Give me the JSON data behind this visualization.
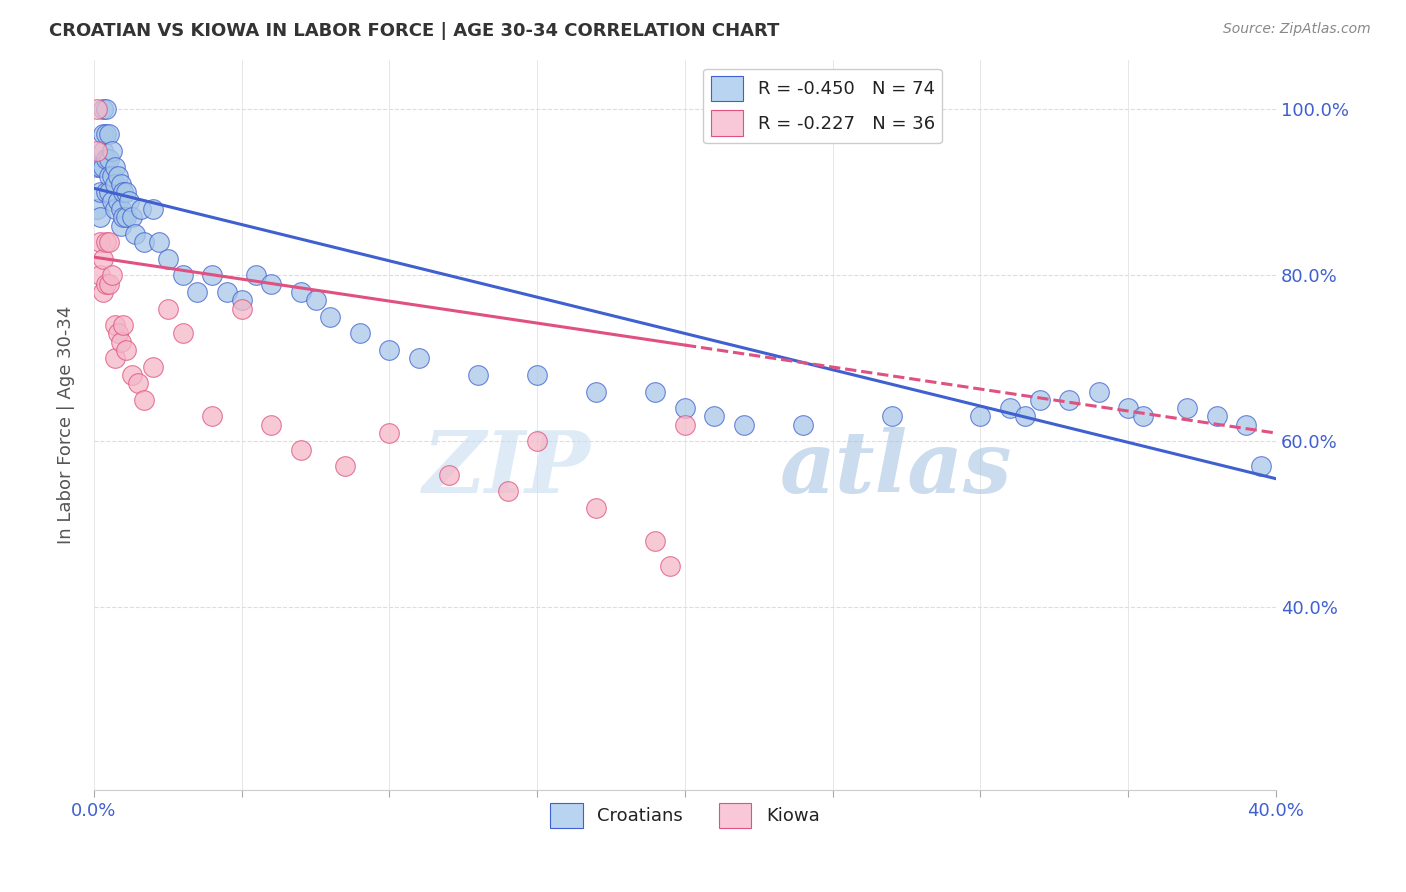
{
  "title": "CROATIAN VS KIOWA IN LABOR FORCE | AGE 30-34 CORRELATION CHART",
  "source": "Source: ZipAtlas.com",
  "ylabel": "In Labor Force | Age 30-34",
  "xlim": [
    0.0,
    0.4
  ],
  "ylim": [
    0.18,
    1.06
  ],
  "ytick_vals": [
    0.4,
    0.6,
    0.8,
    1.0
  ],
  "ytick_labels": [
    "40.0%",
    "60.0%",
    "80.0%",
    "100.0%"
  ],
  "xtick_vals": [
    0.0,
    0.05,
    0.1,
    0.15,
    0.2,
    0.25,
    0.3,
    0.35,
    0.4
  ],
  "xtick_labels": [
    "0.0%",
    "",
    "",
    "",
    "",
    "",
    "",
    "",
    "40.0%"
  ],
  "croatians_color": "#a8c8e8",
  "kiowa_color": "#f4b8c8",
  "trendline_croatians_color": "#4060d0",
  "trendline_kiowa_color": "#e05080",
  "legend_box_color_croatians": "#b8d4f0",
  "legend_box_color_kiowa": "#f8c8d8",
  "R_croatians": -0.45,
  "N_croatians": 74,
  "R_kiowa": -0.227,
  "N_kiowa": 36,
  "watermark_zip": "ZIP",
  "watermark_atlas": "atlas",
  "background_color": "#ffffff",
  "grid_color": "#dddddd",
  "tick_color": "#4060d0",
  "trendline_c_x0": 0.0,
  "trendline_c_y0": 0.905,
  "trendline_c_x1": 0.4,
  "trendline_c_y1": 0.555,
  "trendline_k_x0": 0.0,
  "trendline_k_y0": 0.822,
  "trendline_k_x1_solid": 0.2,
  "trendline_k_y1_solid": 0.716,
  "trendline_k_x1_dash": 0.4,
  "trendline_k_y1_dash": 0.61,
  "croatians_x": [
    0.001,
    0.001,
    0.002,
    0.002,
    0.002,
    0.003,
    0.003,
    0.003,
    0.003,
    0.004,
    0.004,
    0.004,
    0.004,
    0.005,
    0.005,
    0.005,
    0.005,
    0.006,
    0.006,
    0.006,
    0.007,
    0.007,
    0.007,
    0.008,
    0.008,
    0.009,
    0.009,
    0.009,
    0.01,
    0.01,
    0.011,
    0.011,
    0.012,
    0.013,
    0.014,
    0.016,
    0.017,
    0.02,
    0.022,
    0.025,
    0.03,
    0.035,
    0.04,
    0.045,
    0.05,
    0.055,
    0.06,
    0.07,
    0.075,
    0.08,
    0.09,
    0.1,
    0.11,
    0.13,
    0.15,
    0.17,
    0.19,
    0.2,
    0.21,
    0.22,
    0.24,
    0.27,
    0.3,
    0.31,
    0.315,
    0.32,
    0.33,
    0.34,
    0.35,
    0.355,
    0.37,
    0.38,
    0.39,
    0.395
  ],
  "croatians_y": [
    0.93,
    0.88,
    0.93,
    0.9,
    0.87,
    1.0,
    0.97,
    0.95,
    0.93,
    1.0,
    0.97,
    0.94,
    0.9,
    0.97,
    0.94,
    0.92,
    0.9,
    0.95,
    0.92,
    0.89,
    0.93,
    0.91,
    0.88,
    0.92,
    0.89,
    0.91,
    0.88,
    0.86,
    0.9,
    0.87,
    0.9,
    0.87,
    0.89,
    0.87,
    0.85,
    0.88,
    0.84,
    0.88,
    0.84,
    0.82,
    0.8,
    0.78,
    0.8,
    0.78,
    0.77,
    0.8,
    0.79,
    0.78,
    0.77,
    0.75,
    0.73,
    0.71,
    0.7,
    0.68,
    0.68,
    0.66,
    0.66,
    0.64,
    0.63,
    0.62,
    0.62,
    0.63,
    0.63,
    0.64,
    0.63,
    0.65,
    0.65,
    0.66,
    0.64,
    0.63,
    0.64,
    0.63,
    0.62,
    0.57
  ],
  "kiowa_x": [
    0.001,
    0.001,
    0.002,
    0.002,
    0.003,
    0.003,
    0.004,
    0.004,
    0.005,
    0.005,
    0.006,
    0.007,
    0.007,
    0.008,
    0.009,
    0.01,
    0.011,
    0.013,
    0.015,
    0.017,
    0.02,
    0.025,
    0.03,
    0.04,
    0.05,
    0.06,
    0.07,
    0.085,
    0.1,
    0.12,
    0.14,
    0.15,
    0.17,
    0.19,
    0.195,
    0.2
  ],
  "kiowa_y": [
    0.95,
    1.0,
    0.84,
    0.8,
    0.82,
    0.78,
    0.84,
    0.79,
    0.84,
    0.79,
    0.8,
    0.74,
    0.7,
    0.73,
    0.72,
    0.74,
    0.71,
    0.68,
    0.67,
    0.65,
    0.69,
    0.76,
    0.73,
    0.63,
    0.76,
    0.62,
    0.59,
    0.57,
    0.61,
    0.56,
    0.54,
    0.6,
    0.52,
    0.48,
    0.45,
    0.62
  ]
}
